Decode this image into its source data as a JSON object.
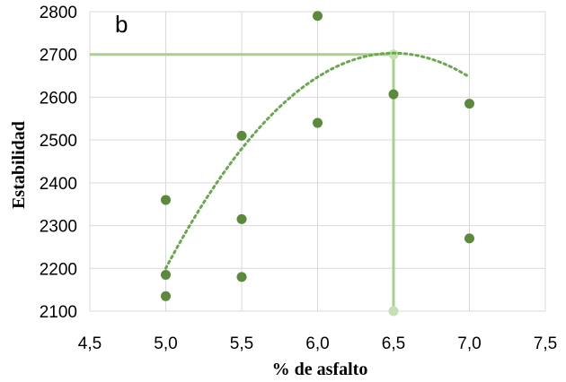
{
  "chart_data": {
    "type": "scatter",
    "panel_label": "b",
    "xlabel": "% de asfalto",
    "ylabel": "Estabilidad",
    "xlim": [
      4.5,
      7.5
    ],
    "ylim": [
      2100,
      2800
    ],
    "x_ticks": [
      "4,5",
      "5,0",
      "5,5",
      "6,0",
      "6,5",
      "7,0",
      "7,5"
    ],
    "y_ticks": [
      "2100",
      "2200",
      "2300",
      "2400",
      "2500",
      "2600",
      "2700",
      "2800"
    ],
    "grid": true,
    "points": [
      {
        "x": 5.0,
        "y": 2360
      },
      {
        "x": 5.0,
        "y": 2185
      },
      {
        "x": 5.0,
        "y": 2135
      },
      {
        "x": 5.5,
        "y": 2510
      },
      {
        "x": 5.5,
        "y": 2315
      },
      {
        "x": 5.5,
        "y": 2180
      },
      {
        "x": 6.0,
        "y": 2790
      },
      {
        "x": 6.0,
        "y": 2540
      },
      {
        "x": 6.5,
        "y": 2607
      },
      {
        "x": 7.0,
        "y": 2585
      },
      {
        "x": 7.0,
        "y": 2270
      }
    ],
    "trendline": {
      "type": "polynomial",
      "x_start": 5.0,
      "x_end": 7.0,
      "vertex": {
        "x": 6.5,
        "y": 2703
      },
      "y_at_start": 2200
    },
    "reference": {
      "x": 6.5,
      "y": 2700
    },
    "colors": {
      "points": "#5b8a3c",
      "trendline": "#6aa84f",
      "reference_lines": "#a9d18e",
      "reference_marker": "#c5e0b4",
      "grid": "#d9d9d9"
    }
  }
}
